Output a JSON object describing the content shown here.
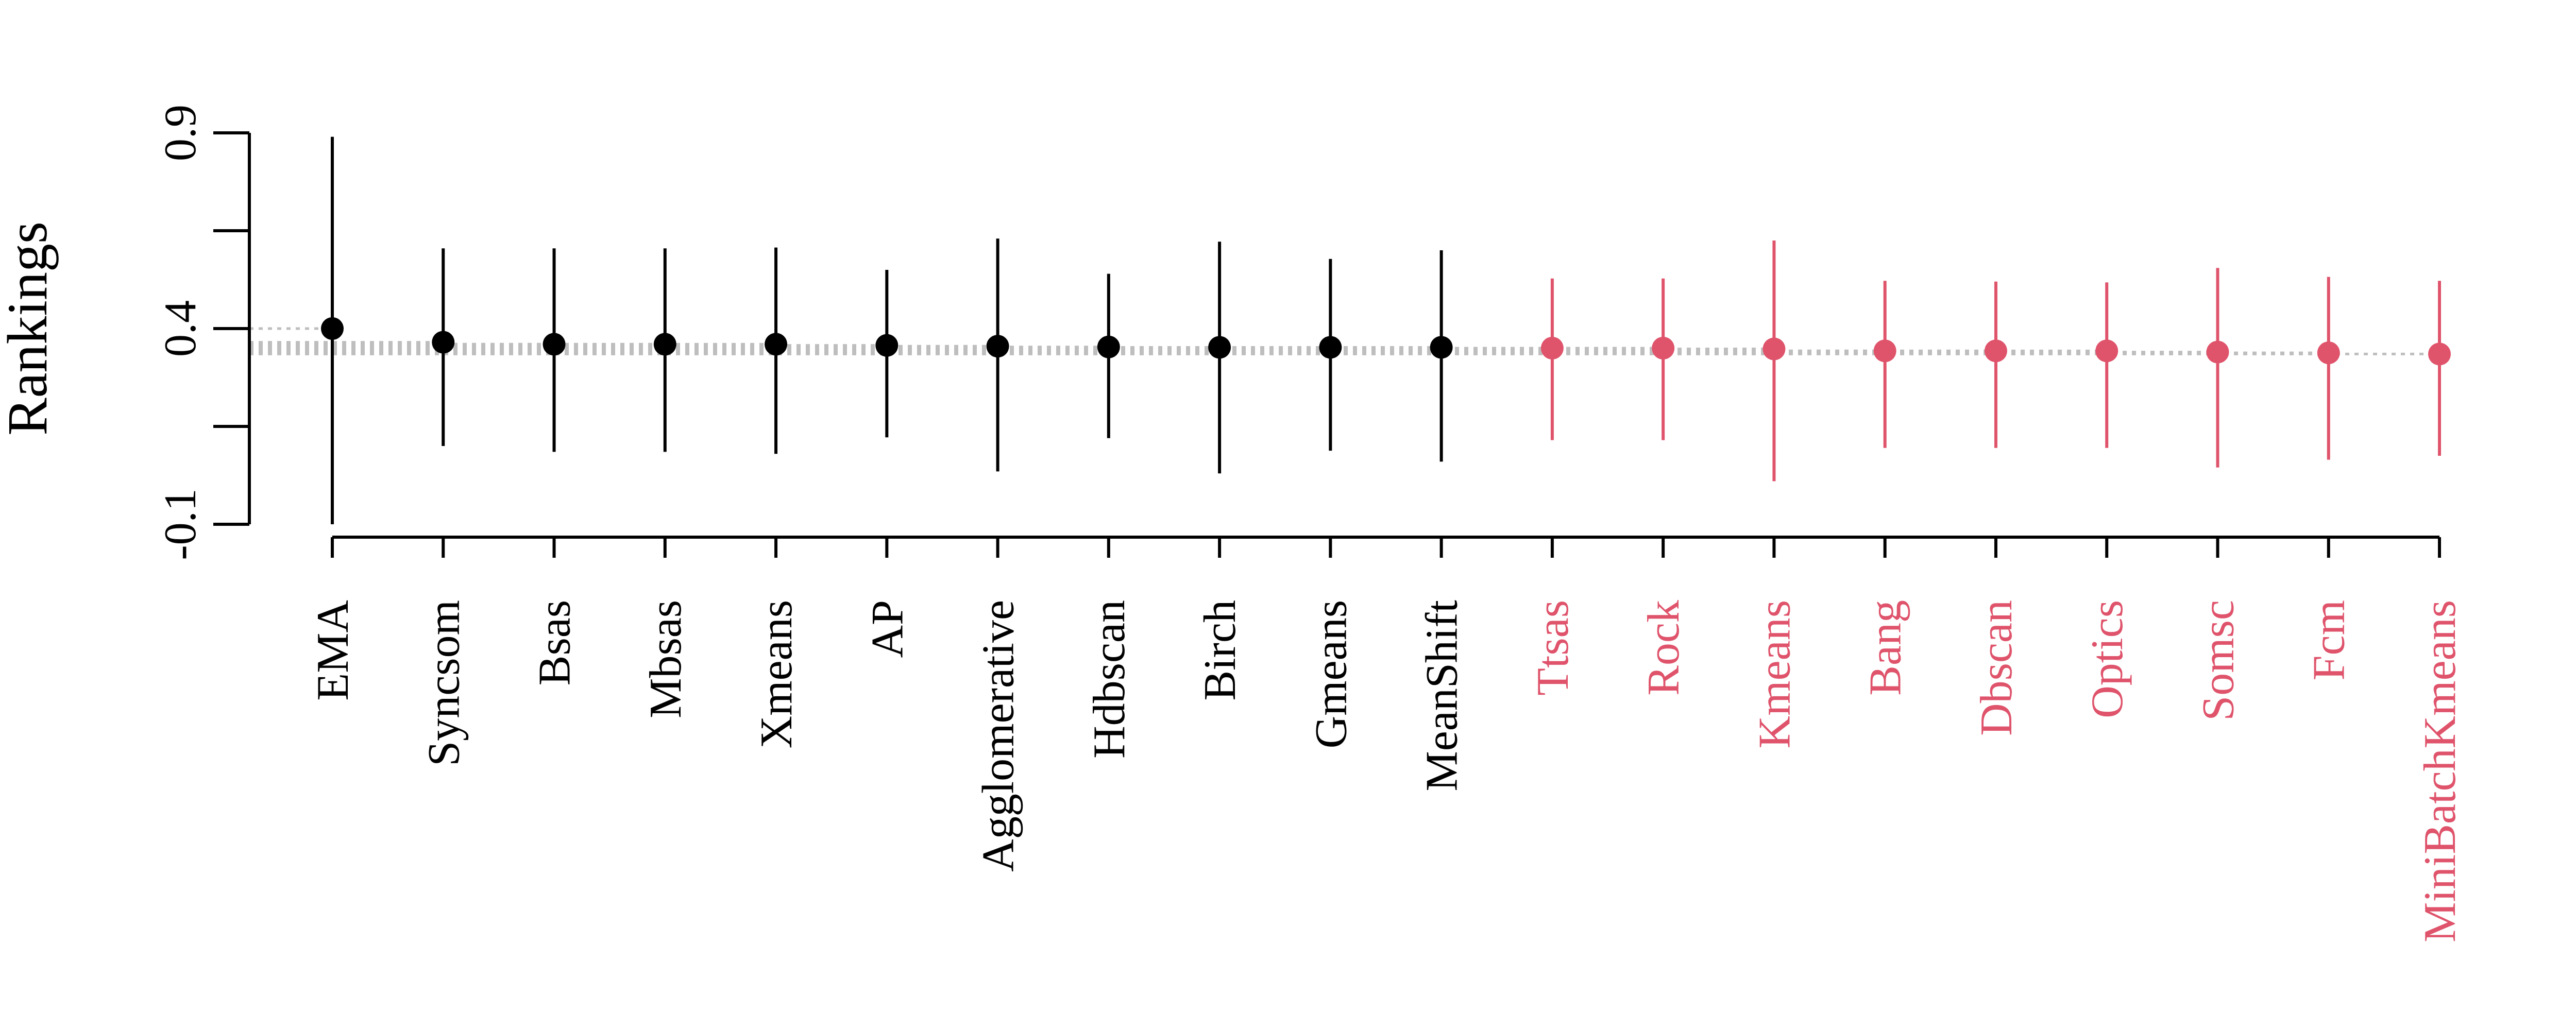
{
  "chart_data": {
    "type": "scatter",
    "title": "",
    "xlabel": "",
    "ylabel": "Rankings",
    "ylim": [
      -0.1,
      0.9
    ],
    "yticks": [
      -0.1,
      0.4,
      0.9
    ],
    "ytick_labels": [
      "-0.1",
      "0.4",
      "0.9"
    ],
    "grid": false,
    "colors": {
      "group_1": "#000000",
      "group_2": "#DF536B",
      "reference_line": "#BEBEBE"
    },
    "points": [
      {
        "label": "EMA",
        "value": 0.4,
        "lower": -0.1,
        "upper": 0.89,
        "group": 1
      },
      {
        "label": "Syncsom",
        "value": 0.365,
        "lower": 0.1,
        "upper": 0.605,
        "group": 1
      },
      {
        "label": "Bsas",
        "value": 0.36,
        "lower": 0.085,
        "upper": 0.605,
        "group": 1
      },
      {
        "label": "Mbsas",
        "value": 0.36,
        "lower": 0.085,
        "upper": 0.605,
        "group": 1
      },
      {
        "label": "Xmeans",
        "value": 0.36,
        "lower": 0.08,
        "upper": 0.607,
        "group": 1
      },
      {
        "label": "AP",
        "value": 0.357,
        "lower": 0.122,
        "upper": 0.55,
        "group": 1
      },
      {
        "label": "Agglomerative",
        "value": 0.355,
        "lower": 0.035,
        "upper": 0.63,
        "group": 1
      },
      {
        "label": "Hdbscan",
        "value": 0.353,
        "lower": 0.12,
        "upper": 0.54,
        "group": 1
      },
      {
        "label": "Birch",
        "value": 0.352,
        "lower": 0.03,
        "upper": 0.622,
        "group": 1
      },
      {
        "label": "Gmeans",
        "value": 0.352,
        "lower": 0.088,
        "upper": 0.578,
        "group": 1
      },
      {
        "label": "MeanShift",
        "value": 0.352,
        "lower": 0.06,
        "upper": 0.6,
        "group": 1
      },
      {
        "label": "Ttsas",
        "value": 0.35,
        "lower": 0.115,
        "upper": 0.528,
        "group": 2
      },
      {
        "label": "Rock",
        "value": 0.35,
        "lower": 0.115,
        "upper": 0.528,
        "group": 2
      },
      {
        "label": "Kmeans",
        "value": 0.348,
        "lower": 0.01,
        "upper": 0.625,
        "group": 2
      },
      {
        "label": "Bang",
        "value": 0.343,
        "lower": 0.095,
        "upper": 0.522,
        "group": 2
      },
      {
        "label": "Dbscan",
        "value": 0.343,
        "lower": 0.095,
        "upper": 0.52,
        "group": 2
      },
      {
        "label": "Optics",
        "value": 0.343,
        "lower": 0.095,
        "upper": 0.518,
        "group": 2
      },
      {
        "label": "Somsc",
        "value": 0.34,
        "lower": 0.045,
        "upper": 0.555,
        "group": 2
      },
      {
        "label": "Fcm",
        "value": 0.338,
        "lower": 0.065,
        "upper": 0.532,
        "group": 2
      },
      {
        "label": "MiniBatchKmeans",
        "value": 0.335,
        "lower": 0.075,
        "upper": 0.522,
        "group": 2
      }
    ]
  }
}
